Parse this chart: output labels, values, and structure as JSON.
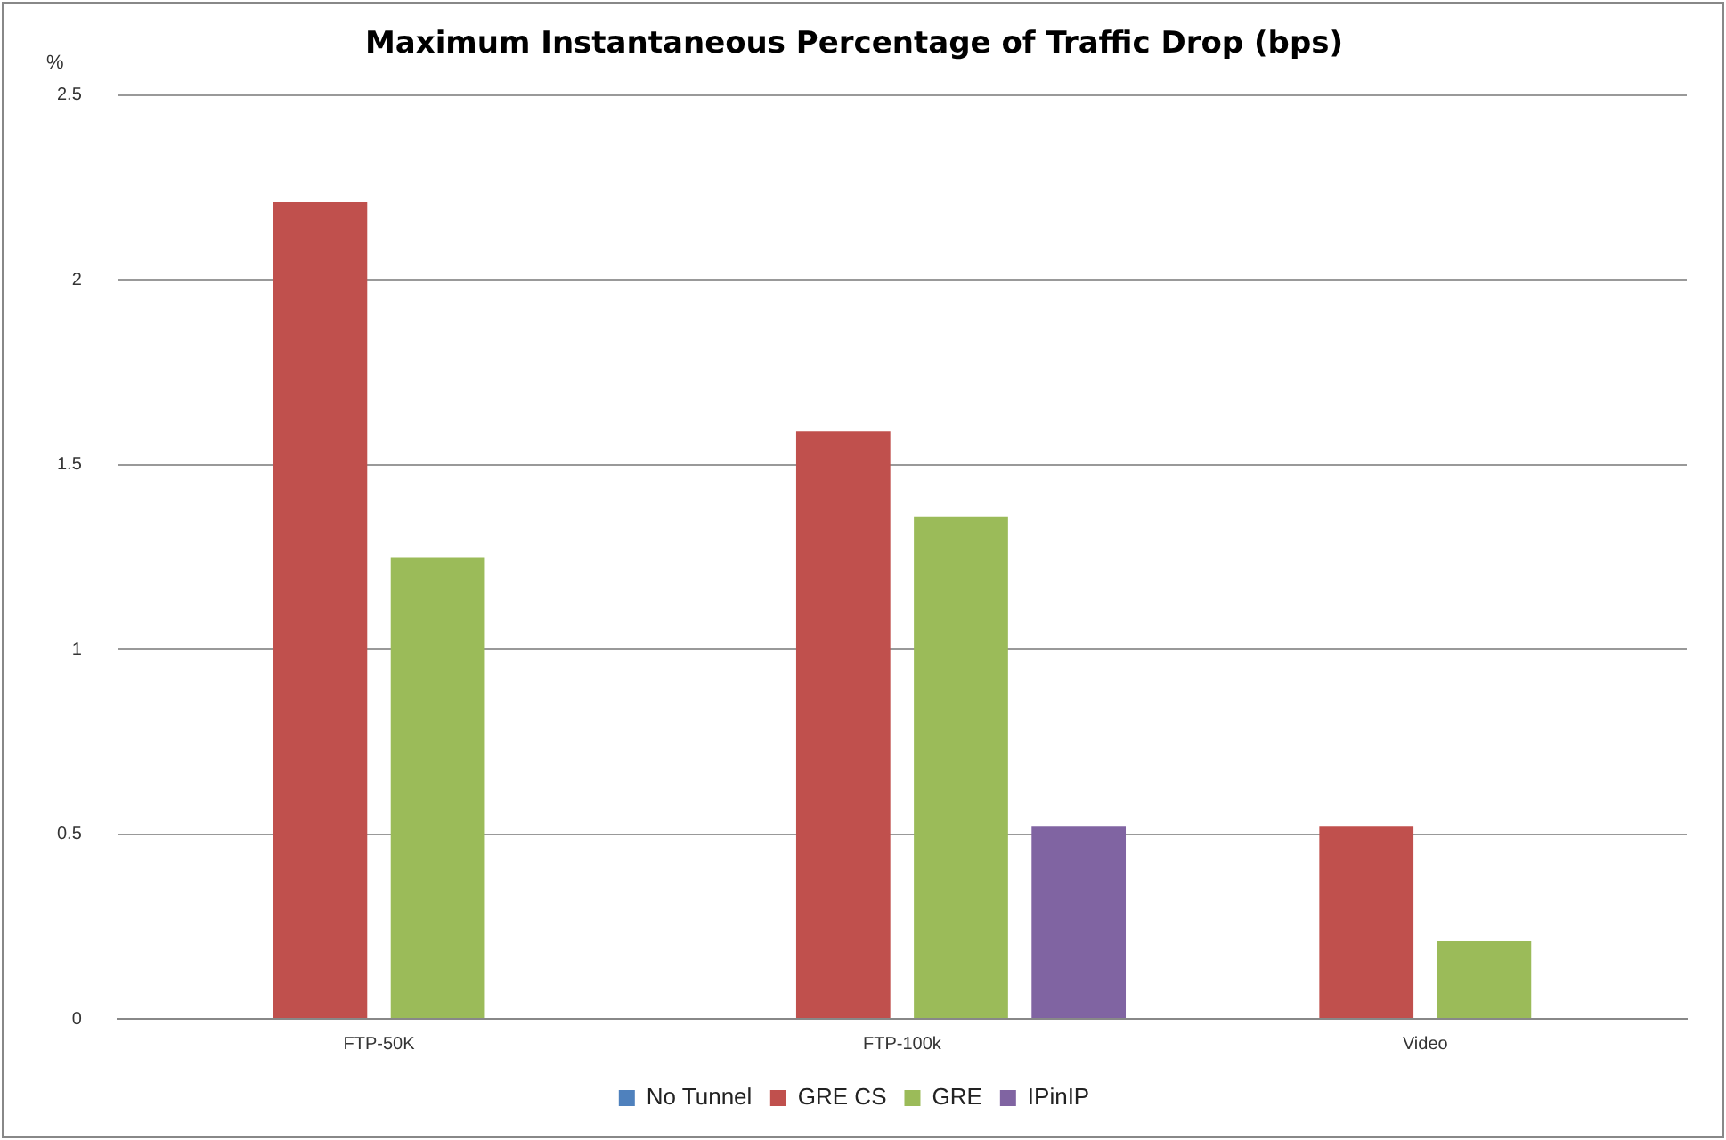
{
  "chart_data": {
    "type": "bar",
    "title": "Maximum Instantaneous Percentage of Traffic Drop (bps)",
    "ylabel": "%",
    "categories": [
      "FTP-50K",
      "FTP-100k",
      "Video"
    ],
    "series": [
      {
        "name": "No Tunnel",
        "color": "#4f81bd",
        "values": [
          0,
          0,
          0
        ]
      },
      {
        "name": "GRE CS",
        "color": "#c0504d",
        "values": [
          2.21,
          1.59,
          0.52
        ]
      },
      {
        "name": "GRE",
        "color": "#9bbb59",
        "values": [
          1.25,
          1.36,
          0.21
        ]
      },
      {
        "name": "IPinIP",
        "color": "#8064a2",
        "values": [
          0,
          0.52,
          0
        ]
      }
    ],
    "ylim": [
      0,
      2.5
    ],
    "yticks": [
      0,
      0.5,
      1,
      1.5,
      2,
      2.5
    ],
    "grid": "y",
    "legend": "bottom"
  }
}
